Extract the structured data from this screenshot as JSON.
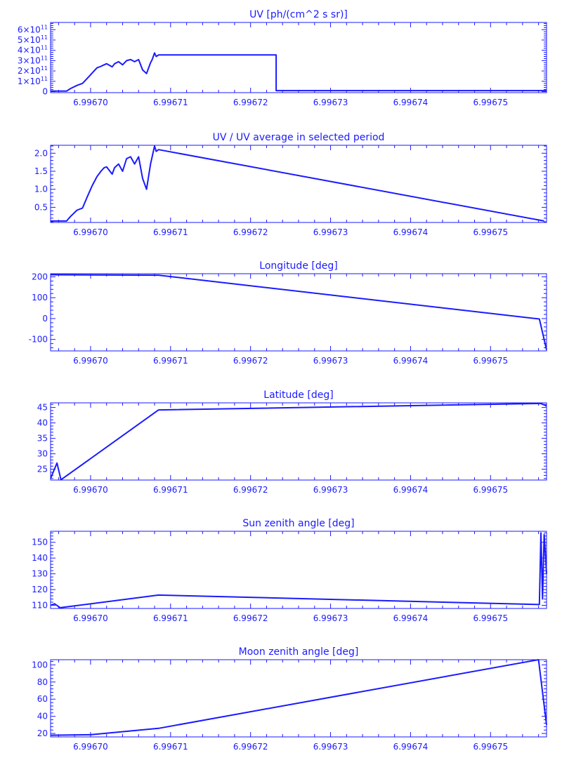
{
  "colors": {
    "ink": "#1a1aff",
    "background": "#ffffff"
  },
  "chart_data": [
    {
      "type": "line",
      "title": "UV [ph/(cm^2 s sr)]",
      "title_parts": {
        "base": "UV [ph/(cm^2 s sr)]"
      },
      "xlabel": "",
      "ylabel": "",
      "xlim": [
        6.996695,
        6.996757
      ],
      "ylim": [
        -10000000000.0,
        670000000000.0
      ],
      "x_ticks": [
        6.9967,
        6.99671,
        6.99672,
        6.99673,
        6.99674,
        6.99675
      ],
      "x_tick_labels": [
        "6.99670",
        "6.99671",
        "6.99672",
        "6.99673",
        "6.99674",
        "6.99675"
      ],
      "y_ticks": [
        0,
        100000000000.0,
        200000000000.0,
        300000000000.0,
        400000000000.0,
        500000000000.0,
        600000000000.0
      ],
      "y_tick_labels": [
        {
          "mant": "0",
          "exp": ""
        },
        {
          "mant": "1×10",
          "exp": "11"
        },
        {
          "mant": "2×10",
          "exp": "11"
        },
        {
          "mant": "3×10",
          "exp": "11"
        },
        {
          "mant": "4×10",
          "exp": "11"
        },
        {
          "mant": "5×10",
          "exp": "11"
        },
        {
          "mant": "6×10",
          "exp": "11"
        }
      ],
      "series": [
        {
          "x": [
            6.996695,
            6.996697,
            6.9966975,
            6.9966983,
            6.996699,
            6.9966996,
            6.9967002,
            6.9967008,
            6.9967013,
            6.9967017,
            6.996702,
            6.9967027,
            6.996703,
            6.9967035,
            6.996704,
            6.9967045,
            6.996705,
            6.9967055,
            6.996706,
            6.9967065,
            6.996707,
            6.9967075,
            6.9967077,
            6.996708,
            6.9967082,
            6.9967085,
            6.996709,
            6.9967232,
            6.9967232,
            6.996757
          ],
          "y": [
            5000000000.0,
            5000000000.0,
            30000000000.0,
            60000000000.0,
            80000000000.0,
            130000000000.0,
            180000000000.0,
            230000000000.0,
            245000000000.0,
            260000000000.0,
            270000000000.0,
            240000000000.0,
            270000000000.0,
            290000000000.0,
            260000000000.0,
            300000000000.0,
            310000000000.0,
            290000000000.0,
            310000000000.0,
            210000000000.0,
            175000000000.0,
            280000000000.0,
            310000000000.0,
            375000000000.0,
            340000000000.0,
            355000000000.0,
            355000000000.0,
            355000000000.0,
            10000000000.0,
            10000000000.0
          ]
        }
      ]
    },
    {
      "type": "line",
      "title": "UV / UV average in selected period",
      "xlabel": "",
      "ylabel": "",
      "xlim": [
        6.996695,
        6.996757
      ],
      "ylim": [
        0.08,
        2.22
      ],
      "x_ticks": [
        6.9967,
        6.99671,
        6.99672,
        6.99673,
        6.99674,
        6.99675
      ],
      "x_tick_labels": [
        "6.99670",
        "6.99671",
        "6.99672",
        "6.99673",
        "6.99674",
        "6.99675"
      ],
      "y_ticks": [
        0.5,
        1.0,
        1.5,
        2.0
      ],
      "y_tick_labels": [
        "0.5",
        "1.0",
        "1.5",
        "2.0"
      ],
      "series": [
        {
          "x": [
            6.996695,
            6.996697,
            6.9966975,
            6.9966983,
            6.996699,
            6.9966996,
            6.9967002,
            6.9967008,
            6.9967013,
            6.9967017,
            6.996702,
            6.9967027,
            6.996703,
            6.9967035,
            6.996704,
            6.9967045,
            6.996705,
            6.9967055,
            6.996706,
            6.9967065,
            6.996707,
            6.9967075,
            6.9967077,
            6.996708,
            6.9967082,
            6.9967085,
            6.9967567
          ],
          "y": [
            0.12,
            0.12,
            0.25,
            0.42,
            0.48,
            0.8,
            1.1,
            1.35,
            1.5,
            1.6,
            1.62,
            1.42,
            1.6,
            1.7,
            1.5,
            1.85,
            1.9,
            1.7,
            1.9,
            1.3,
            1.0,
            1.7,
            1.9,
            2.2,
            2.05,
            2.1,
            0.12
          ]
        }
      ]
    },
    {
      "type": "line",
      "title": "Longitude [deg]",
      "xlabel": "",
      "ylabel": "",
      "xlim": [
        6.996695,
        6.996757
      ],
      "ylim": [
        -155,
        215
      ],
      "x_ticks": [
        6.9967,
        6.99671,
        6.99672,
        6.99673,
        6.99674,
        6.99675
      ],
      "x_tick_labels": [
        "6.99670",
        "6.99671",
        "6.99672",
        "6.99673",
        "6.99674",
        "6.99675"
      ],
      "y_ticks": [
        -100,
        0,
        100,
        200
      ],
      "y_tick_labels": [
        "-100",
        "0",
        "100",
        "200"
      ],
      "series": [
        {
          "x": [
            6.996695,
            6.9967085,
            6.9967561,
            6.996757
          ],
          "y": [
            210,
            208,
            -2,
            -150
          ]
        }
      ]
    },
    {
      "type": "line",
      "title": "Latitude [deg]",
      "xlabel": "",
      "ylabel": "",
      "xlim": [
        6.996695,
        6.996757
      ],
      "ylim": [
        21.5,
        46.5
      ],
      "x_ticks": [
        6.9967,
        6.99671,
        6.99672,
        6.99673,
        6.99674,
        6.99675
      ],
      "x_tick_labels": [
        "6.99670",
        "6.99671",
        "6.99672",
        "6.99673",
        "6.99674",
        "6.99675"
      ],
      "y_ticks": [
        25,
        30,
        35,
        40,
        45
      ],
      "y_tick_labels": [
        "25",
        "30",
        "35",
        "40",
        "45"
      ],
      "series": [
        {
          "x": [
            6.996695,
            6.9966958,
            6.9966963,
            6.9967085,
            6.9967563,
            6.996757
          ],
          "y": [
            22,
            27,
            21.6,
            44.2,
            46.3,
            45.5
          ]
        }
      ]
    },
    {
      "type": "line",
      "title": "Sun zenith angle [deg]",
      "xlabel": "",
      "ylabel": "",
      "xlim": [
        6.996695,
        6.996757
      ],
      "ylim": [
        108,
        157
      ],
      "x_ticks": [
        6.9967,
        6.99671,
        6.99672,
        6.99673,
        6.99674,
        6.99675
      ],
      "x_tick_labels": [
        "6.99670",
        "6.99671",
        "6.99672",
        "6.99673",
        "6.99674",
        "6.99675"
      ],
      "y_ticks": [
        110,
        120,
        130,
        140,
        150
      ],
      "y_tick_labels": [
        "110",
        "120",
        "130",
        "140",
        "150"
      ],
      "series": [
        {
          "x": [
            6.996695,
            6.9966955,
            6.9966962,
            6.9967085,
            6.9967561,
            6.9967563,
            6.9967565,
            6.9967567,
            6.996757
          ],
          "y": [
            110,
            111,
            108.5,
            116.5,
            110.5,
            156,
            114,
            155,
            130
          ]
        }
      ]
    },
    {
      "type": "line",
      "title": "Moon zenith angle [deg]",
      "xlabel": "",
      "ylabel": "",
      "xlim": [
        6.996695,
        6.996757
      ],
      "ylim": [
        16,
        106
      ],
      "x_ticks": [
        6.9967,
        6.99671,
        6.99672,
        6.99673,
        6.99674,
        6.99675
      ],
      "x_tick_labels": [
        "6.99670",
        "6.99671",
        "6.99672",
        "6.99673",
        "6.99674",
        "6.99675"
      ],
      "y_ticks": [
        20,
        40,
        60,
        80,
        100
      ],
      "y_tick_labels": [
        "20",
        "40",
        "60",
        "80",
        "100"
      ],
      "series": [
        {
          "x": [
            6.996695,
            6.9967,
            6.9967085,
            6.996756,
            6.996757
          ],
          "y": [
            18,
            18.5,
            26,
            106,
            30
          ]
        }
      ]
    }
  ]
}
